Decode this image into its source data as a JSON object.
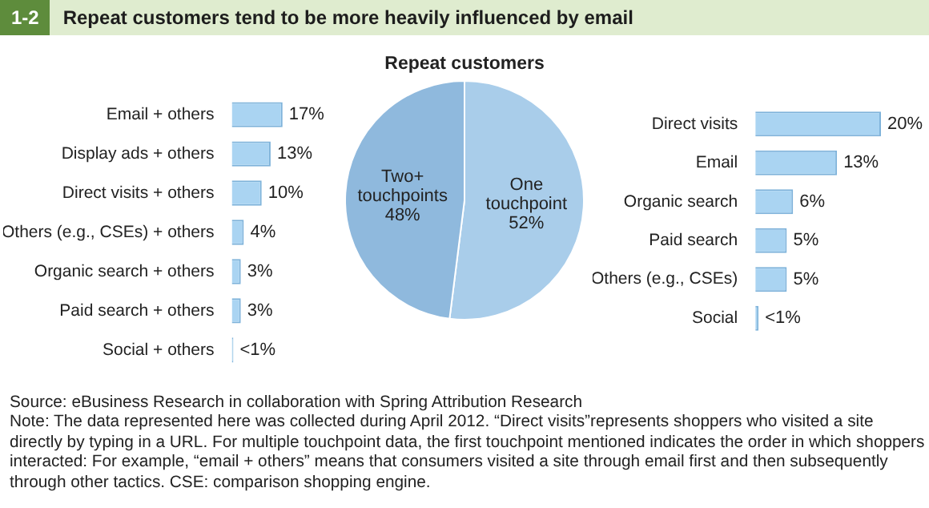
{
  "chart_data": [
    {
      "type": "bar",
      "orientation": "horizontal",
      "title": "Repeat customers tend to be more heavily influenced by email",
      "categories": [
        "Email + others",
        "Display ads + others",
        "Direct visits + others",
        "Others (e.g., CSEs) + others",
        "Organic search + others",
        "Paid search + others",
        "Social + others"
      ],
      "values": [
        17,
        13,
        10,
        4,
        3,
        3,
        0.5
      ],
      "value_labels": [
        "17%",
        "13%",
        "10%",
        "4%",
        "3%",
        "3%",
        "<1%"
      ],
      "color": "#aad4f2",
      "legend": false,
      "annotations": [
        "1-2",
        "Source: eBusiness Research in collaboration with Spring Attribution Research",
        "Note: The data represented here was collected during April 2012. “Direct visits”represents shoppers who visited a site directly by typing in a URL. For multiple touchpoint data, the first touchpoint mentioned indicates the order in which shoppers interacted: For example, “email + others” means that consumers visited a site through email first and then subsequently through other tactics. CSE: comparison shopping engine."
      ]
    },
    {
      "type": "pie",
      "title": "Repeat customers",
      "categories": [
        "One touchpoint",
        "Two+ touchpoints"
      ],
      "values": [
        52,
        48
      ],
      "value_labels": [
        "52%",
        "48%"
      ],
      "colors": [
        "#a9cdea",
        "#8fb9dd"
      ],
      "legend": false
    },
    {
      "type": "bar",
      "orientation": "horizontal",
      "categories": [
        "Direct visits",
        "Email",
        "Organic search",
        "Paid search",
        "Others (e.g., CSEs)",
        "Social"
      ],
      "values": [
        20,
        13,
        6,
        5,
        5,
        0.5
      ],
      "value_labels": [
        "20%",
        "13%",
        "6%",
        "5%",
        "5%",
        "<1%"
      ],
      "color": "#aad4f2",
      "legend": false
    }
  ]
}
